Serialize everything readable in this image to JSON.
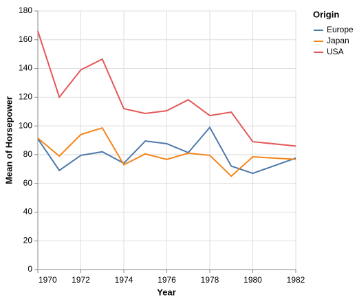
{
  "chart_data": {
    "type": "line",
    "x_label": "Year",
    "y_label": "Mean of Horsepower",
    "legend_title": "Origin",
    "x": [
      1970,
      1971,
      1972,
      1973,
      1974,
      1975,
      1976,
      1977,
      1978,
      1979,
      1980,
      1982
    ],
    "series": [
      {
        "name": "Europe",
        "color": "#4c78a8",
        "values": [
          91,
          69,
          79.5,
          82,
          74,
          89.5,
          87.6,
          81.4,
          99,
          72,
          67,
          77.6
        ]
      },
      {
        "name": "Japan",
        "color": "#f58518",
        "values": [
          91.5,
          79,
          94,
          98.6,
          73,
          80.5,
          76.7,
          81,
          79.5,
          65,
          78.5,
          76.7
        ]
      },
      {
        "name": "USA",
        "color": "#e45756",
        "values": [
          166,
          120,
          139,
          146.5,
          112,
          108.7,
          110.6,
          118.2,
          107.2,
          109.6,
          89,
          86
        ]
      }
    ],
    "xlim": [
      1970,
      1982
    ],
    "xticks": [
      1970,
      1972,
      1974,
      1976,
      1978,
      1980,
      1982
    ],
    "ylim": [
      0,
      180
    ],
    "yticks": [
      0,
      20,
      40,
      60,
      80,
      100,
      120,
      140,
      160,
      180
    ],
    "grid": true,
    "legend_position": "right"
  }
}
